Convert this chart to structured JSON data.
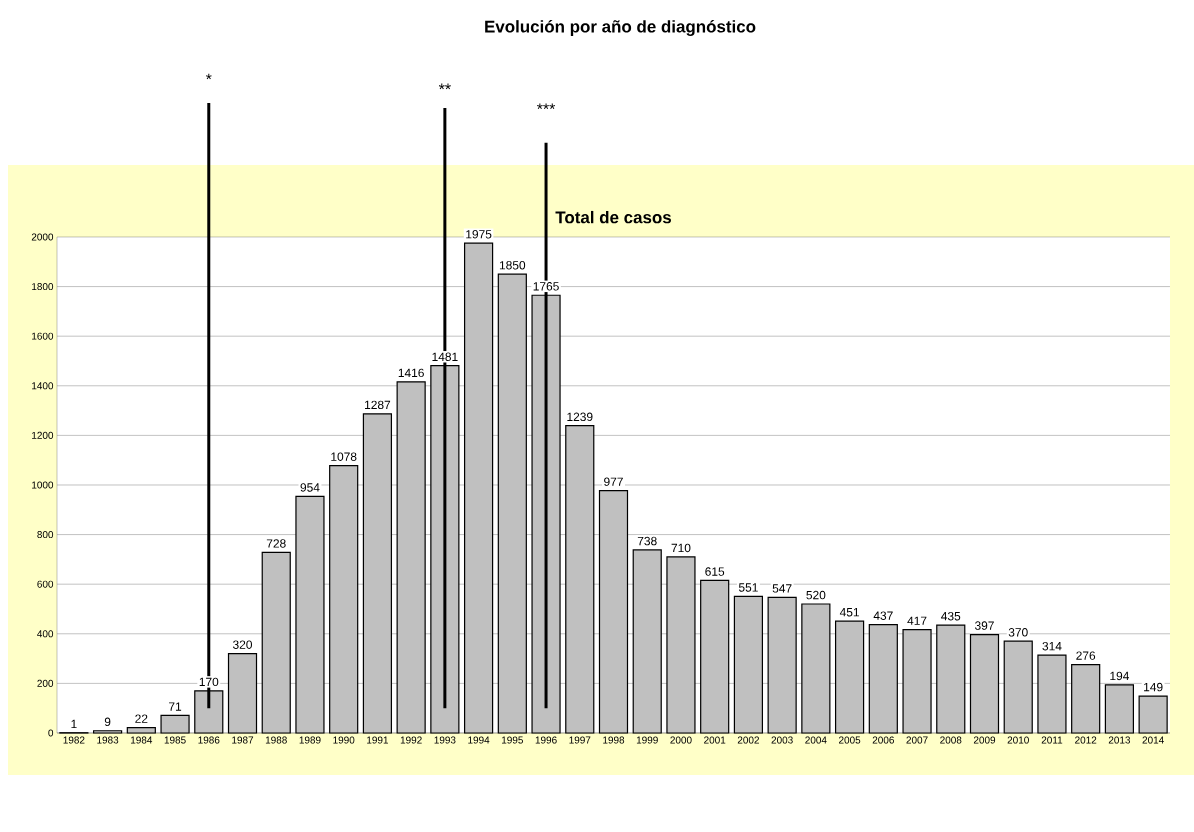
{
  "chart_data": {
    "type": "bar",
    "title": "Evolución por año de diagnóstico",
    "subtitle": "Total de casos",
    "categories": [
      "1982",
      "1983",
      "1984",
      "1985",
      "1986",
      "1987",
      "1988",
      "1989",
      "1990",
      "1991",
      "1992",
      "1993",
      "1994",
      "1995",
      "1996",
      "1997",
      "1998",
      "1999",
      "2000",
      "2001",
      "2002",
      "2003",
      "2004",
      "2005",
      "2006",
      "2007",
      "2008",
      "2009",
      "2010",
      "2011",
      "2012",
      "2013",
      "2014"
    ],
    "values": [
      1,
      9,
      22,
      71,
      170,
      320,
      728,
      954,
      1078,
      1287,
      1416,
      1481,
      1975,
      1850,
      1765,
      1239,
      977,
      738,
      710,
      615,
      551,
      547,
      520,
      451,
      437,
      417,
      435,
      397,
      370,
      314,
      276,
      194,
      149
    ],
    "color": "#c0c0c0",
    "ylim": [
      0,
      2000
    ],
    "yticks": [
      0,
      200,
      400,
      600,
      800,
      1000,
      1200,
      1400,
      1600,
      1800,
      2000
    ],
    "grid": "y",
    "data_labels": true,
    "ref_lines": [
      {
        "axis": "x",
        "value": "1986",
        "label": "*",
        "color": "#000000"
      },
      {
        "axis": "x",
        "value": "1993",
        "label": "**",
        "color": "#000000"
      },
      {
        "axis": "x",
        "value": "1996",
        "label": "***",
        "color": "#000000"
      }
    ]
  }
}
